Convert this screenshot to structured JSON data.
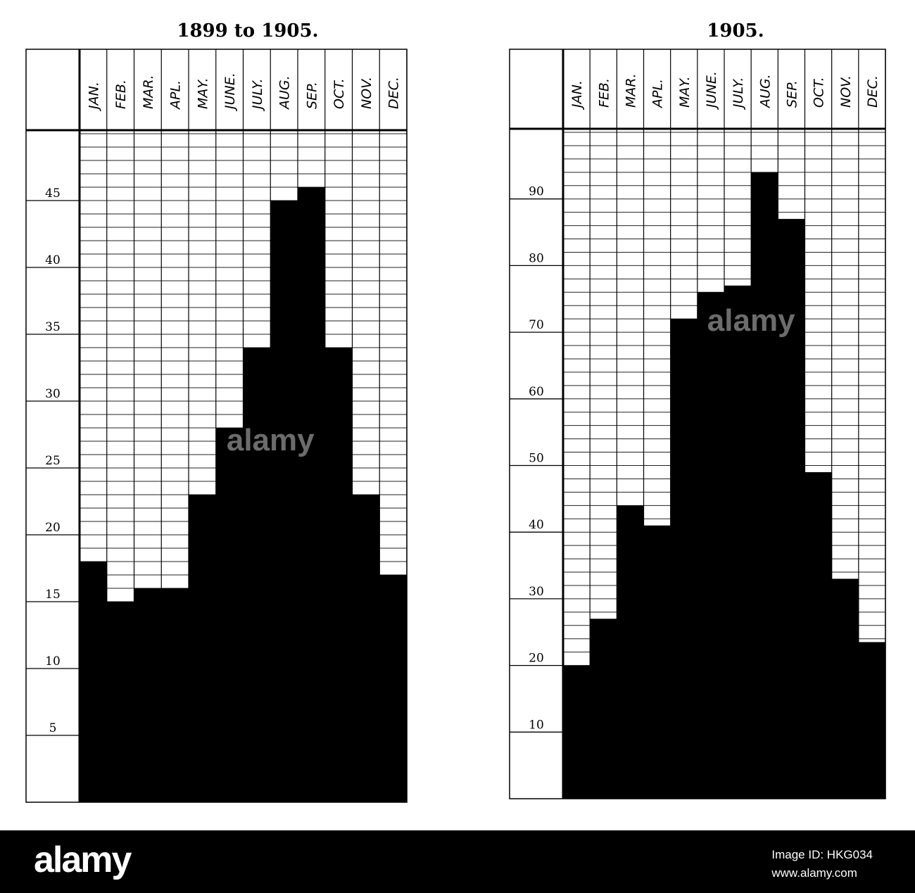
{
  "chart_data": [
    {
      "type": "bar",
      "title": "1899 to 1905.",
      "categories": [
        "JAN.",
        "FEB.",
        "MAR.",
        "APL.",
        "MAY.",
        "JUNE.",
        "JULY.",
        "AUG.",
        "SEP.",
        "OCT.",
        "NOV.",
        "DEC."
      ],
      "values": [
        18,
        15,
        16,
        16,
        23,
        28,
        34,
        45,
        46,
        34,
        23,
        17
      ],
      "yticks": [
        5,
        10,
        15,
        20,
        25,
        30,
        35,
        40,
        45
      ],
      "ylim": [
        0,
        48
      ],
      "grid": true,
      "bar_color": "#000000"
    },
    {
      "type": "bar",
      "title": "1905.",
      "categories": [
        "JAN.",
        "FEB.",
        "MAR.",
        "APL.",
        "MAY.",
        "JUNE.",
        "JULY.",
        "AUG.",
        "SEP.",
        "OCT.",
        "NOV.",
        "DEC."
      ],
      "values": [
        20,
        27,
        44,
        41,
        72,
        76,
        77,
        94,
        87,
        49,
        33,
        23.5
      ],
      "yticks": [
        10,
        20,
        30,
        40,
        50,
        60,
        70,
        80,
        90
      ],
      "ylim": [
        0,
        100
      ],
      "grid": true,
      "bar_color": "#000000"
    }
  ],
  "watermark": "alamy",
  "footer": {
    "logo": "alamy",
    "image_id": "Image ID: HKG034",
    "url": "www.alamy.com"
  }
}
